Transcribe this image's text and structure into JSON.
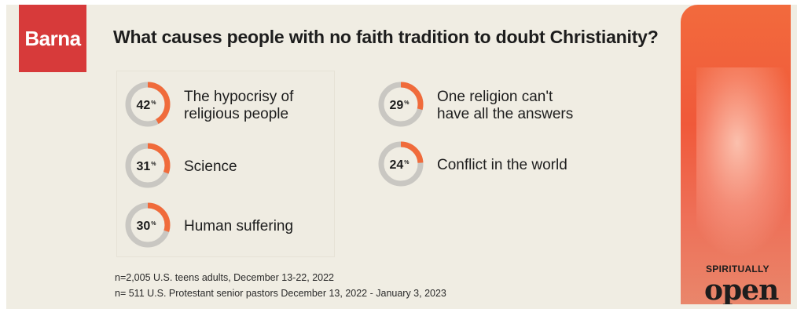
{
  "logo": "Barna",
  "title": "What causes people with no faith tradition to doubt Christianity?",
  "chart_data": {
    "type": "donut",
    "title": "What causes people with no faith tradition to doubt Christianity?",
    "unit": "%",
    "items": [
      {
        "label_lines": [
          "The hypocrisy of",
          "religious people"
        ],
        "value": 42
      },
      {
        "label_lines": [
          "Science"
        ],
        "value": 31
      },
      {
        "label_lines": [
          "Human suffering"
        ],
        "value": 30
      },
      {
        "label_lines": [
          "One religion can't",
          "have all the answers"
        ],
        "value": 29
      },
      {
        "label_lines": [
          "Conflict in the world"
        ],
        "value": 24
      }
    ],
    "colors": {
      "filled": "#f06b3b",
      "remainder": "#c9c7c2"
    }
  },
  "footnotes": [
    "n=2,005 U.S. teens adults, December 13-22, 2022",
    "n= 511 U.S. Protestant senior pastors December 13, 2022 - January 3, 2023"
  ],
  "brand": {
    "top": "SPIRITUALLY",
    "bottom": "open"
  }
}
